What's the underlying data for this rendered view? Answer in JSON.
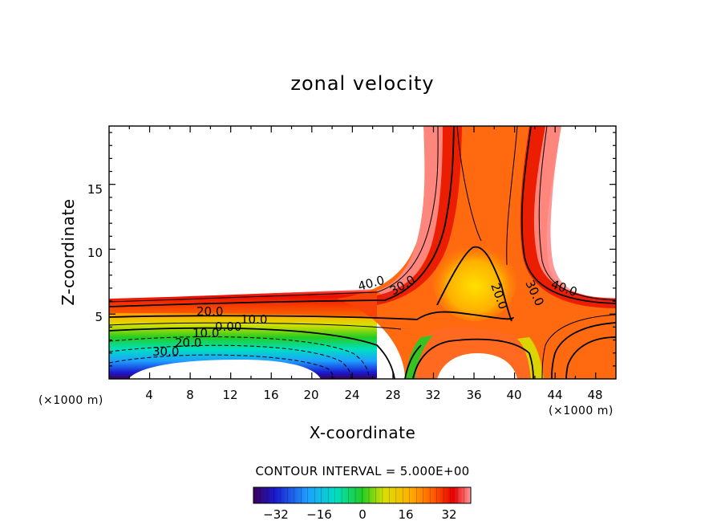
{
  "chart_data": {
    "type": "contour",
    "title": "zonal velocity",
    "xlabel": "X-coordinate",
    "ylabel": "Z-coordinate",
    "x_unit": "(×1000 m)",
    "y_unit": "(×1000 m)",
    "xlim": [
      0,
      50
    ],
    "ylim": [
      0,
      19.5
    ],
    "x_ticks": [
      "4",
      "8",
      "12",
      "16",
      "20",
      "24",
      "28",
      "32",
      "36",
      "40",
      "44",
      "48"
    ],
    "y_ticks": [
      "5",
      "10",
      "15"
    ],
    "contour_interval_label": "CONTOUR INTERVAL = 5.000E+00",
    "contour_interval": 5,
    "contour_labels": [
      "40.0",
      "30.0",
      "20.0",
      "10.0",
      "0.00",
      "10.0",
      "20.0",
      "30.0",
      "20.0",
      "30.0",
      "40.0"
    ],
    "colorbar": {
      "range": [
        -40,
        40
      ],
      "ticks": [
        "−32",
        "−16",
        "0",
        "16",
        "32"
      ],
      "colors": [
        "#3d005a",
        "#1a1ad0",
        "#1ea0ff",
        "#00e0c0",
        "#22cc22",
        "#d8e000",
        "#ffb000",
        "#ff5a00",
        "#e80000",
        "#ff9a9a"
      ]
    }
  }
}
